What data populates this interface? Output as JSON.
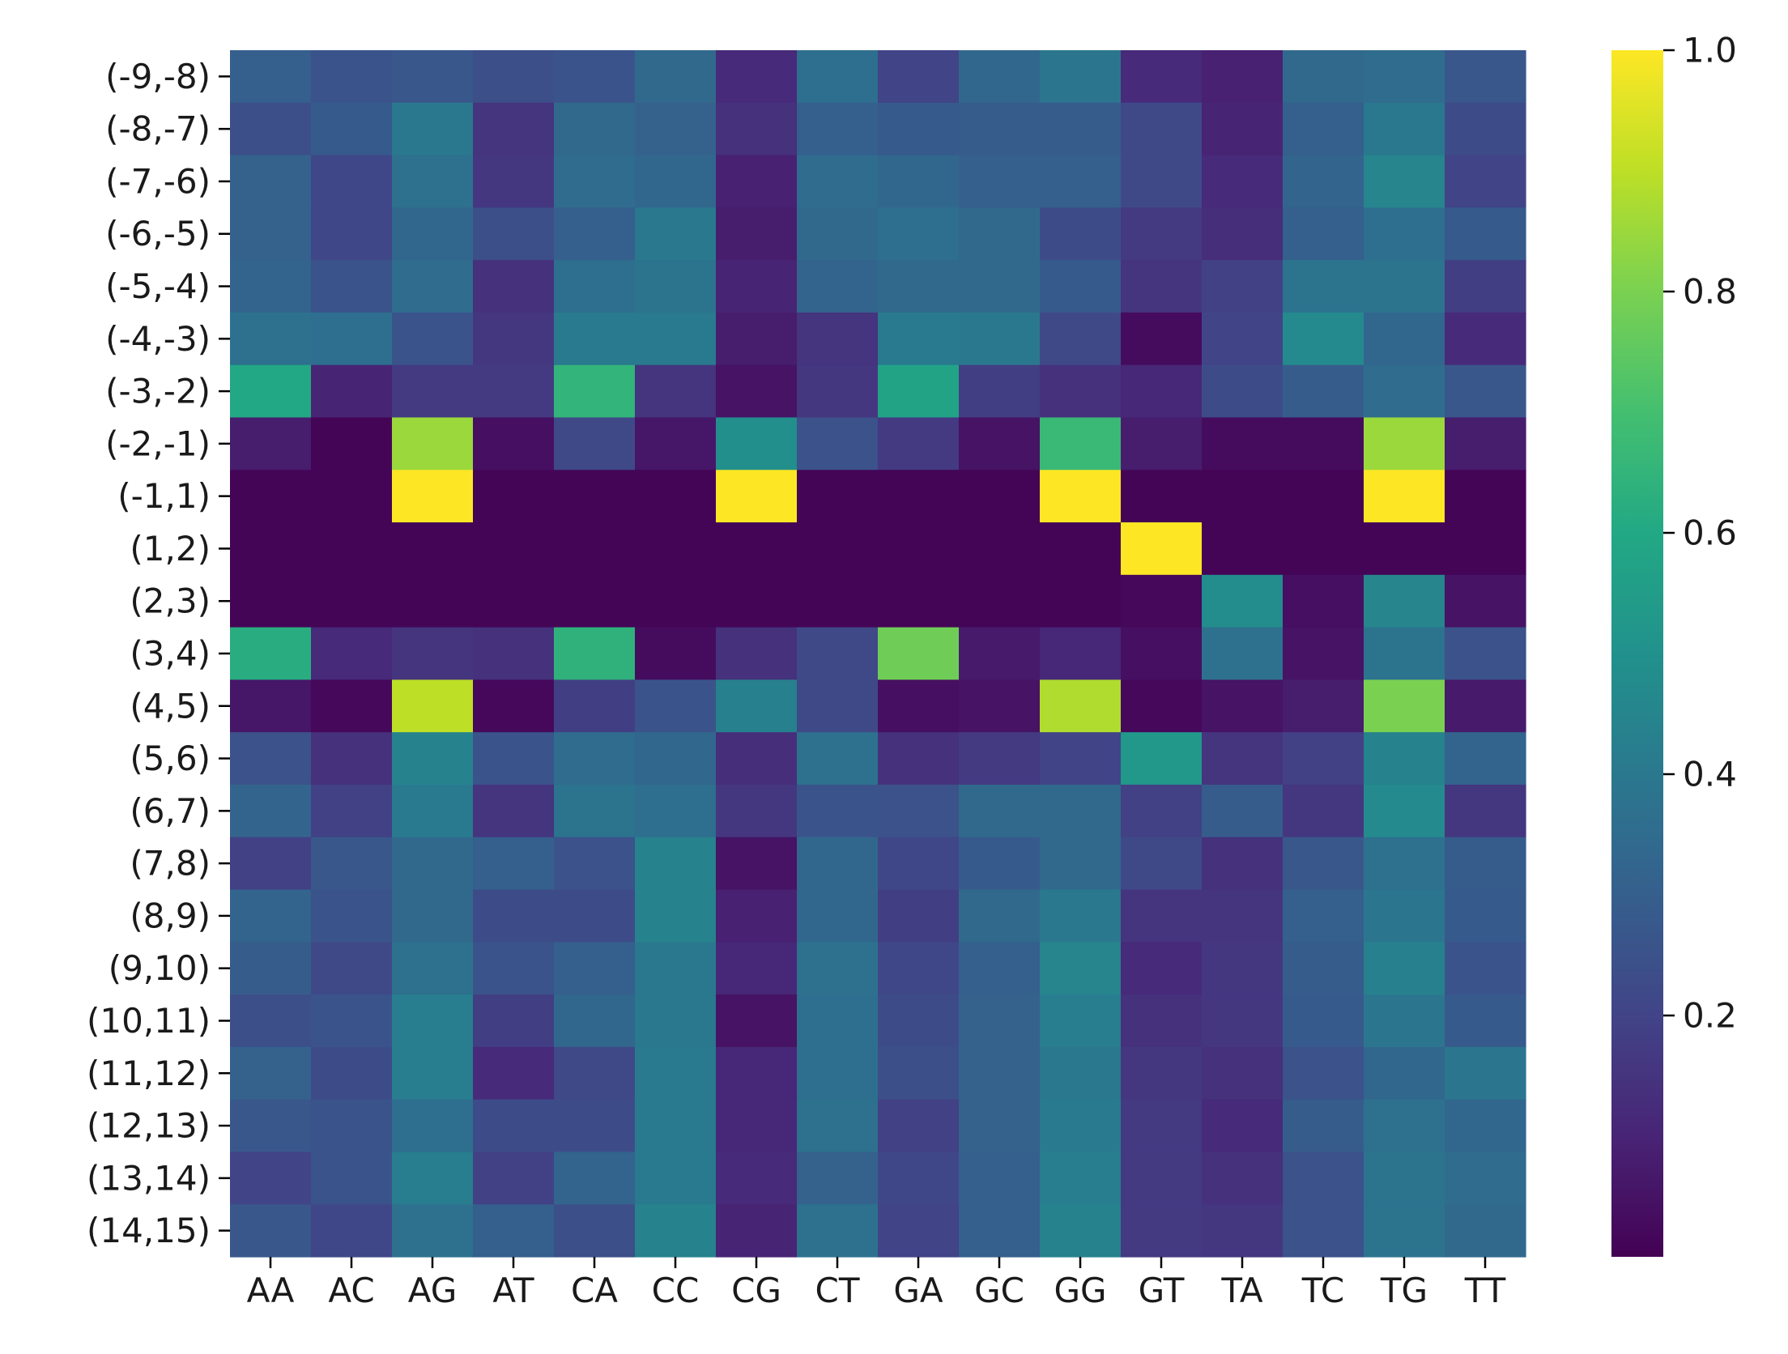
{
  "chart_data": {
    "type": "heatmap",
    "title": "",
    "xlabel": "",
    "ylabel": "",
    "x_categories": [
      "AA",
      "AC",
      "AG",
      "AT",
      "CA",
      "CC",
      "CG",
      "CT",
      "GA",
      "GC",
      "GG",
      "GT",
      "TA",
      "TC",
      "TG",
      "TT"
    ],
    "y_categories": [
      "(-9,-8)",
      "(-8,-7)",
      "(-7,-6)",
      "(-6,-5)",
      "(-5,-4)",
      "(-4,-3)",
      "(-3,-2)",
      "(-2,-1)",
      "(-1,1)",
      "(1,2)",
      "(2,3)",
      "(3,4)",
      "(4,5)",
      "(5,6)",
      "(6,7)",
      "(7,8)",
      "(8,9)",
      "(9,10)",
      "(10,11)",
      "(11,12)",
      "(12,13)",
      "(13,14)",
      "(14,15)"
    ],
    "values": [
      [
        0.3,
        0.26,
        0.27,
        0.24,
        0.26,
        0.34,
        0.12,
        0.36,
        0.2,
        0.33,
        0.39,
        0.12,
        0.09,
        0.34,
        0.35,
        0.27
      ],
      [
        0.24,
        0.28,
        0.4,
        0.15,
        0.34,
        0.31,
        0.14,
        0.3,
        0.28,
        0.29,
        0.29,
        0.22,
        0.1,
        0.3,
        0.4,
        0.23
      ],
      [
        0.31,
        0.21,
        0.37,
        0.16,
        0.35,
        0.33,
        0.09,
        0.35,
        0.33,
        0.3,
        0.3,
        0.22,
        0.12,
        0.32,
        0.45,
        0.2
      ],
      [
        0.31,
        0.21,
        0.33,
        0.24,
        0.3,
        0.4,
        0.08,
        0.34,
        0.36,
        0.34,
        0.23,
        0.17,
        0.13,
        0.3,
        0.36,
        0.28
      ],
      [
        0.32,
        0.26,
        0.35,
        0.14,
        0.36,
        0.38,
        0.1,
        0.32,
        0.34,
        0.34,
        0.28,
        0.15,
        0.19,
        0.38,
        0.38,
        0.18
      ],
      [
        0.37,
        0.36,
        0.26,
        0.16,
        0.41,
        0.41,
        0.08,
        0.15,
        0.41,
        0.4,
        0.22,
        0.03,
        0.2,
        0.47,
        0.33,
        0.12
      ],
      [
        0.6,
        0.1,
        0.17,
        0.17,
        0.65,
        0.15,
        0.05,
        0.16,
        0.58,
        0.18,
        0.14,
        0.11,
        0.23,
        0.29,
        0.35,
        0.27
      ],
      [
        0.08,
        0.01,
        0.85,
        0.04,
        0.22,
        0.06,
        0.49,
        0.25,
        0.17,
        0.05,
        0.67,
        0.08,
        0.03,
        0.03,
        0.85,
        0.08
      ],
      [
        0.01,
        0.01,
        1.0,
        0.01,
        0.01,
        0.01,
        1.0,
        0.01,
        0.01,
        0.01,
        1.0,
        0.01,
        0.01,
        0.01,
        1.0,
        0.01
      ],
      [
        0.01,
        0.01,
        0.01,
        0.01,
        0.01,
        0.01,
        0.01,
        0.01,
        0.01,
        0.01,
        0.01,
        1.0,
        0.01,
        0.01,
        0.01,
        0.01
      ],
      [
        0.01,
        0.01,
        0.01,
        0.01,
        0.01,
        0.01,
        0.01,
        0.01,
        0.01,
        0.01,
        0.01,
        0.02,
        0.48,
        0.04,
        0.45,
        0.05
      ],
      [
        0.62,
        0.12,
        0.15,
        0.14,
        0.64,
        0.03,
        0.14,
        0.22,
        0.78,
        0.07,
        0.11,
        0.04,
        0.37,
        0.05,
        0.38,
        0.25
      ],
      [
        0.06,
        0.02,
        0.9,
        0.02,
        0.18,
        0.26,
        0.43,
        0.22,
        0.04,
        0.05,
        0.88,
        0.02,
        0.05,
        0.08,
        0.8,
        0.07
      ],
      [
        0.25,
        0.14,
        0.44,
        0.26,
        0.35,
        0.33,
        0.13,
        0.37,
        0.14,
        0.17,
        0.2,
        0.53,
        0.15,
        0.19,
        0.44,
        0.32
      ],
      [
        0.32,
        0.19,
        0.41,
        0.15,
        0.38,
        0.36,
        0.16,
        0.26,
        0.25,
        0.34,
        0.34,
        0.19,
        0.29,
        0.16,
        0.47,
        0.16
      ],
      [
        0.19,
        0.27,
        0.34,
        0.3,
        0.25,
        0.44,
        0.05,
        0.33,
        0.21,
        0.28,
        0.34,
        0.22,
        0.14,
        0.27,
        0.37,
        0.29
      ],
      [
        0.32,
        0.26,
        0.34,
        0.23,
        0.23,
        0.44,
        0.09,
        0.33,
        0.18,
        0.34,
        0.4,
        0.15,
        0.15,
        0.3,
        0.39,
        0.28
      ],
      [
        0.29,
        0.22,
        0.37,
        0.26,
        0.3,
        0.4,
        0.11,
        0.37,
        0.21,
        0.3,
        0.45,
        0.12,
        0.16,
        0.29,
        0.43,
        0.26
      ],
      [
        0.24,
        0.26,
        0.42,
        0.18,
        0.33,
        0.4,
        0.05,
        0.36,
        0.23,
        0.31,
        0.42,
        0.14,
        0.16,
        0.28,
        0.39,
        0.28
      ],
      [
        0.31,
        0.23,
        0.42,
        0.12,
        0.22,
        0.41,
        0.11,
        0.36,
        0.24,
        0.31,
        0.4,
        0.16,
        0.14,
        0.25,
        0.33,
        0.39
      ],
      [
        0.27,
        0.26,
        0.36,
        0.23,
        0.23,
        0.41,
        0.11,
        0.37,
        0.19,
        0.31,
        0.41,
        0.17,
        0.12,
        0.29,
        0.37,
        0.33
      ],
      [
        0.2,
        0.26,
        0.42,
        0.19,
        0.32,
        0.41,
        0.12,
        0.31,
        0.21,
        0.3,
        0.42,
        0.17,
        0.14,
        0.25,
        0.38,
        0.35
      ],
      [
        0.27,
        0.21,
        0.37,
        0.3,
        0.24,
        0.44,
        0.1,
        0.37,
        0.2,
        0.3,
        0.44,
        0.17,
        0.16,
        0.25,
        0.38,
        0.34
      ]
    ],
    "colormap": "viridis",
    "colorbar": {
      "min": 0.0,
      "max": 1.0,
      "ticks": [
        0.2,
        0.4,
        0.6,
        0.8,
        1.0
      ],
      "tick_labels": [
        "0.2",
        "0.4",
        "0.6",
        "0.8",
        "1.0"
      ]
    },
    "grid": false,
    "legend": "colorbar-right"
  }
}
